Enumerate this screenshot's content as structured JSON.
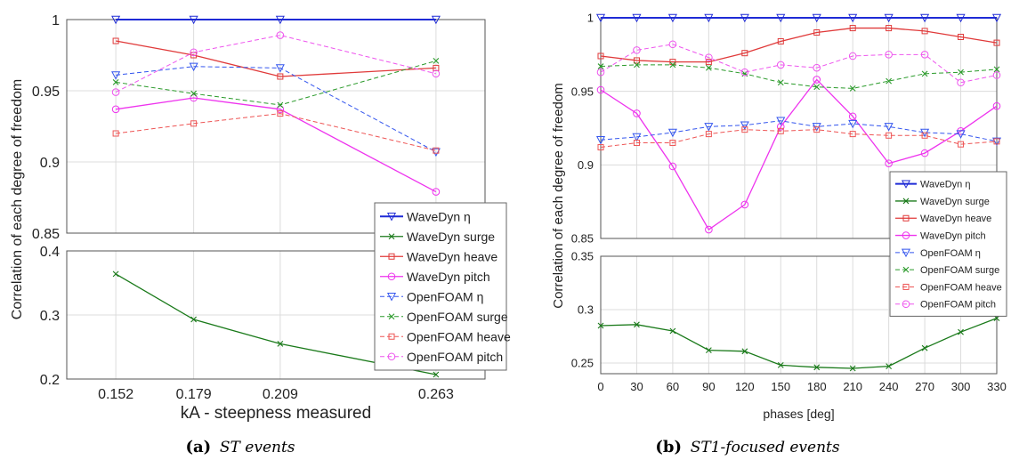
{
  "figure": {
    "captions": [
      {
        "tag": "(a)",
        "text": "ST events"
      },
      {
        "tag": "(b)",
        "text": "ST1-focused events"
      }
    ]
  },
  "legend_entries": [
    {
      "name": "WaveDyn η",
      "color": "#1f2bd6",
      "marker": "triangle-down",
      "dash": false,
      "width": 2
    },
    {
      "name": "WaveDyn surge",
      "color": "#1a7a1a",
      "marker": "x",
      "dash": false,
      "width": 1.3
    },
    {
      "name": "WaveDyn heave",
      "color": "#e03a3a",
      "marker": "square",
      "dash": false,
      "width": 1.3
    },
    {
      "name": "WaveDyn pitch",
      "color": "#ee33ee",
      "marker": "circle",
      "dash": false,
      "width": 1.3
    },
    {
      "name": "OpenFOAM η",
      "color": "#3355ee",
      "marker": "triangle-down",
      "dash": true,
      "width": 1
    },
    {
      "name": "OpenFOAM surge",
      "color": "#2a9a2a",
      "marker": "x",
      "dash": true,
      "width": 1
    },
    {
      "name": "OpenFOAM heave",
      "color": "#ee5555",
      "marker": "square",
      "dash": true,
      "width": 1
    },
    {
      "name": "OpenFOAM pitch",
      "color": "#ee55ee",
      "marker": "circle",
      "dash": true,
      "width": 1
    }
  ],
  "chart_data": [
    {
      "type": "line",
      "ylabel": "Correlation of each degree of freedom",
      "xlabel": "kA - steepness measured",
      "x": [
        0.152,
        0.179,
        0.209,
        0.263
      ],
      "xticks": [
        "0.152",
        "0.179",
        "0.209",
        "0.263"
      ],
      "xlim": [
        0.135,
        0.28
      ],
      "upper_ylim": [
        0.85,
        1.0
      ],
      "upper_yticks": [
        "0.85",
        "0.9",
        "0.95",
        "1"
      ],
      "lower_ylim": [
        0.2,
        0.4
      ],
      "lower_yticks": [
        "0.2",
        "0.3",
        "0.4"
      ],
      "legend_position": "right",
      "series": [
        {
          "name": "WaveDyn η",
          "panel": "upper",
          "values": [
            1.0,
            1.0,
            1.0,
            1.0
          ]
        },
        {
          "name": "WaveDyn surge",
          "panel": "lower",
          "values": [
            0.364,
            0.293,
            0.255,
            0.207
          ]
        },
        {
          "name": "WaveDyn heave",
          "panel": "upper",
          "values": [
            0.985,
            0.975,
            0.96,
            0.966
          ]
        },
        {
          "name": "WaveDyn pitch",
          "panel": "upper",
          "values": [
            0.937,
            0.945,
            0.937,
            0.879
          ]
        },
        {
          "name": "OpenFOAM η",
          "panel": "upper",
          "values": [
            0.961,
            0.967,
            0.966,
            0.907
          ]
        },
        {
          "name": "OpenFOAM surge",
          "panel": "upper",
          "values": [
            0.956,
            0.948,
            0.94,
            0.971
          ]
        },
        {
          "name": "OpenFOAM heave",
          "panel": "upper",
          "values": [
            0.92,
            0.927,
            0.934,
            0.908
          ]
        },
        {
          "name": "OpenFOAM pitch",
          "panel": "upper",
          "values": [
            0.949,
            0.977,
            0.989,
            0.962
          ]
        }
      ]
    },
    {
      "type": "line",
      "ylabel": "Correlation of each degree of freedom",
      "xlabel": "phases [deg]",
      "x": [
        0,
        30,
        60,
        90,
        120,
        150,
        180,
        210,
        240,
        270,
        300,
        330
      ],
      "xticks": [
        "0",
        "30",
        "60",
        "90",
        "120",
        "150",
        "180",
        "210",
        "240",
        "270",
        "300",
        "330"
      ],
      "xlim": [
        0,
        330
      ],
      "upper_ylim": [
        0.85,
        1.0
      ],
      "upper_yticks": [
        "0.85",
        "0.9",
        "0.95",
        "1"
      ],
      "lower_ylim": [
        0.24,
        0.35
      ],
      "lower_yticks": [
        "0.25",
        "0.3",
        "0.35"
      ],
      "legend_position": "right",
      "series": [
        {
          "name": "WaveDyn η",
          "panel": "upper",
          "values": [
            1.0,
            1.0,
            1.0,
            1.0,
            1.0,
            1.0,
            1.0,
            1.0,
            1.0,
            1.0,
            1.0,
            1.0
          ]
        },
        {
          "name": "WaveDyn surge",
          "panel": "lower",
          "values": [
            0.285,
            0.286,
            0.28,
            0.262,
            0.261,
            0.248,
            0.246,
            0.245,
            0.247,
            0.264,
            0.279,
            0.292
          ]
        },
        {
          "name": "WaveDyn heave",
          "panel": "upper",
          "values": [
            0.974,
            0.971,
            0.97,
            0.97,
            0.976,
            0.984,
            0.99,
            0.993,
            0.993,
            0.991,
            0.987,
            0.983
          ]
        },
        {
          "name": "WaveDyn pitch",
          "panel": "upper",
          "values": [
            0.951,
            0.935,
            0.899,
            0.856,
            0.873,
            0.926,
            0.958,
            0.933,
            0.901,
            0.908,
            0.923,
            0.94
          ]
        },
        {
          "name": "OpenFOAM η",
          "panel": "upper",
          "values": [
            0.917,
            0.919,
            0.922,
            0.926,
            0.927,
            0.93,
            0.926,
            0.928,
            0.926,
            0.922,
            0.921,
            0.916
          ]
        },
        {
          "name": "OpenFOAM surge",
          "panel": "upper",
          "values": [
            0.967,
            0.968,
            0.968,
            0.966,
            0.962,
            0.956,
            0.953,
            0.952,
            0.957,
            0.962,
            0.963,
            0.965
          ]
        },
        {
          "name": "OpenFOAM heave",
          "panel": "upper",
          "values": [
            0.912,
            0.915,
            0.915,
            0.921,
            0.924,
            0.923,
            0.924,
            0.921,
            0.92,
            0.92,
            0.914,
            0.916
          ]
        },
        {
          "name": "OpenFOAM pitch",
          "panel": "upper",
          "values": [
            0.963,
            0.978,
            0.982,
            0.973,
            0.963,
            0.968,
            0.966,
            0.974,
            0.975,
            0.975,
            0.956,
            0.961
          ]
        }
      ]
    }
  ]
}
